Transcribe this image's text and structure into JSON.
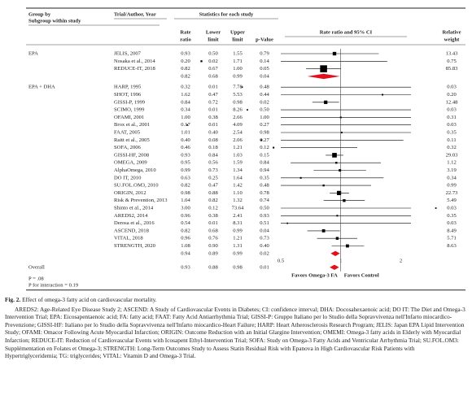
{
  "header": {
    "group_by": "Group by",
    "subgroup": "Subgroup within study",
    "trial": "Trial/Author, Year",
    "statistics": "Statistics for each study",
    "columns": [
      [
        "Rate",
        "ratio"
      ],
      [
        "Lower",
        "limit"
      ],
      [
        "Upper",
        "limit"
      ],
      [
        "p-Value"
      ]
    ],
    "plot_header": "Rate ratio and 95% CI",
    "weight_header": [
      "Relative",
      "weight"
    ]
  },
  "groups": [
    {
      "name": "EPA",
      "studies": [
        {
          "trial": "JELIS, 2007",
          "rate_ratio": "0.93",
          "lower": "0.50",
          "upper": "1.55",
          "p": "0.79",
          "weight": "13.43"
        },
        {
          "trial": "Nosaka et al., 2014",
          "rate_ratio": "0.20",
          "lower": "0.02",
          "upper": "1.71",
          "p": "0.14",
          "weight": "0.75"
        },
        {
          "trial": "REDUCE-IT, 2018",
          "rate_ratio": "0.82",
          "lower": "0.67",
          "upper": "1.00",
          "p": "0.05",
          "weight": "85.83"
        }
      ],
      "summary": {
        "rate_ratio": "0.82",
        "lower": "0.68",
        "upper": "0.99",
        "p": "0.04"
      }
    },
    {
      "name": "EPA + DHA",
      "studies": [
        {
          "trial": "HARP, 1995",
          "rate_ratio": "0.32",
          "lower": "0.01",
          "upper": "7.78",
          "p": "0.48",
          "weight": "0.03"
        },
        {
          "trial": "SHOT, 1996",
          "rate_ratio": "1.62",
          "lower": "0.47",
          "upper": "5.53",
          "p": "0.44",
          "weight": "0.20"
        },
        {
          "trial": "GISSI-P, 1999",
          "rate_ratio": "0.84",
          "lower": "0.72",
          "upper": "0.98",
          "p": "0.02",
          "weight": "12.48"
        },
        {
          "trial": "SCIMO, 1999",
          "rate_ratio": "0.34",
          "lower": "0.01",
          "upper": "8.26",
          "p": "0.50",
          "weight": "0.03"
        },
        {
          "trial": "OFAMI, 2001",
          "rate_ratio": "1.00",
          "lower": "0.38",
          "upper": "2.66",
          "p": "1.00",
          "weight": "0.31"
        },
        {
          "trial": "Brox et al., 2001",
          "rate_ratio": "0.17",
          "lower": "0.01",
          "upper": "4.09",
          "p": "0.27",
          "weight": "0.03"
        },
        {
          "trial": "FAAT, 2005",
          "rate_ratio": "1.01",
          "lower": "0.40",
          "upper": "2.54",
          "p": "0.98",
          "weight": "0.35"
        },
        {
          "trial": "Raitt et al., 2005",
          "rate_ratio": "0.40",
          "lower": "0.08",
          "upper": "2.06",
          "p": "0.27",
          "weight": "0.11"
        },
        {
          "trial": "SOFA, 2006",
          "rate_ratio": "0.46",
          "lower": "0.18",
          "upper": "1.21",
          "p": "0.12",
          "weight": "0.32"
        },
        {
          "trial": "GISSI-HF, 2008",
          "rate_ratio": "0.93",
          "lower": "0.84",
          "upper": "1.03",
          "p": "0.15",
          "weight": "29.03"
        },
        {
          "trial": "OMEGA, 2009",
          "rate_ratio": "0.95",
          "lower": "0.56",
          "upper": "1.59",
          "p": "0.84",
          "weight": "1.12"
        },
        {
          "trial": "AlphaOmega, 2010",
          "rate_ratio": "0.99",
          "lower": "0.73",
          "upper": "1.34",
          "p": "0.94",
          "weight": "3.19"
        },
        {
          "trial": "DO IT, 2010",
          "rate_ratio": "0.63",
          "lower": "0.25",
          "upper": "1.64",
          "p": "0.35",
          "weight": "0.34"
        },
        {
          "trial": "SU.FOL.OM3, 2010",
          "rate_ratio": "0.82",
          "lower": "0.47",
          "upper": "1.42",
          "p": "0.48",
          "weight": "0.99"
        },
        {
          "trial": "ORIGIN, 2012",
          "rate_ratio": "0.98",
          "lower": "0.88",
          "upper": "1.10",
          "p": "0.78",
          "weight": "22.73"
        },
        {
          "trial": "Risk & Prevention, 2013",
          "rate_ratio": "1.04",
          "lower": "0.82",
          "upper": "1.32",
          "p": "0.74",
          "weight": "5.49"
        },
        {
          "trial": "Shinto et al., 2014",
          "rate_ratio": "3.00",
          "lower": "0.12",
          "upper": "73.64",
          "p": "0.50",
          "weight": "0.03"
        },
        {
          "trial": "AREDS2, 2014",
          "rate_ratio": "0.96",
          "lower": "0.38",
          "upper": "2.41",
          "p": "0.93",
          "weight": "0.35"
        },
        {
          "trial": "Derosa et al., 2016",
          "rate_ratio": "0.54",
          "lower": "0.01",
          "upper": "8.31",
          "p": "0.51",
          "weight": "0.03"
        },
        {
          "trial": "ASCEND, 2018",
          "rate_ratio": "0.82",
          "lower": "0.68",
          "upper": "0.99",
          "p": "0.04",
          "weight": "8.49"
        },
        {
          "trial": "VITAL, 2018",
          "rate_ratio": "0.96",
          "lower": "0.76",
          "upper": "1.21",
          "p": "0.73",
          "weight": "5.71"
        },
        {
          "trial": "STRENGTH, 2020",
          "rate_ratio": "1.08",
          "lower": "0.90",
          "upper": "1.31",
          "p": "0.40",
          "weight": "8.63"
        }
      ],
      "summary": {
        "rate_ratio": "0.94",
        "lower": "0.89",
        "upper": "0.99",
        "p": "0.02"
      }
    }
  ],
  "overall": {
    "label": "Overall",
    "rate_ratio": "0.93",
    "lower": "0.88",
    "upper": "0.98",
    "p": "0.01"
  },
  "heterogeneity": "P = .08",
  "interaction": "P for interaction = 0.19",
  "forest": {
    "xlim": [
      0.5,
      2.25
    ],
    "xticks": [
      0.5,
      1,
      2
    ],
    "log": true,
    "favors_left": "Favors Omega-3 FA",
    "favors_right": "Favors Control",
    "marker_color": "#000000",
    "summary_color": "#e3101c"
  },
  "caption": {
    "label": "Fig. 2.",
    "title": "Effect of omega-3 fatty acid on cardiovascular mortality.",
    "abbreviations": "AREDS2: Age-Related Eye Disease Study 2; ASCEND: A Study of Cardiovascular Events in Diabetes; CI: confidence interval; DHA: Docosahexaenoic acid; DO IT: The Diet and Omega-3 Intervention Trial; EPA: Eicosapentaenoic acid; FA: fatty acid; FAAT: Fatty Acid Antiarrhythmia Trial; GISSI-P: Gruppo Italiano per lo Studio della Sopravvivenza nell'Infarto miocardico-Prevenzione; GISSI-HF: Italiano per lo Studio della Sopravvivenza nell'Infarto miocardico-Heart Failure; HARP: Heart Atherosclerosis Research Program; JELIS: Japan EPA Lipid Intervention Study; OFAMI: Omacor Following Acute Myocardial Infarction; ORIGIN: Outcome Reduction with an Initial Glargine Intervention; OMEMI: Omega-3 fatty acids in Elderly with Myocardial Infarction; REDUCE-IT: Reduction of Cardiovascular Events with Icosapent Ethyl-Intervention Trial; SOFA: Study on Omega-3 Fatty Acids and Ventricular Arrhythmia Trial; SU.FOL.OM3: Supplémentation en Folates et Omega-3; STRENGTH: Long-Term Outcomes Study to Assess Statin Residual Risk with Epanova in High Cardiovascular Risk Patients with Hypertriglyceridemia; TG: triglycerides; VITAL: Vitamin D and Omega-3 Trial."
  }
}
